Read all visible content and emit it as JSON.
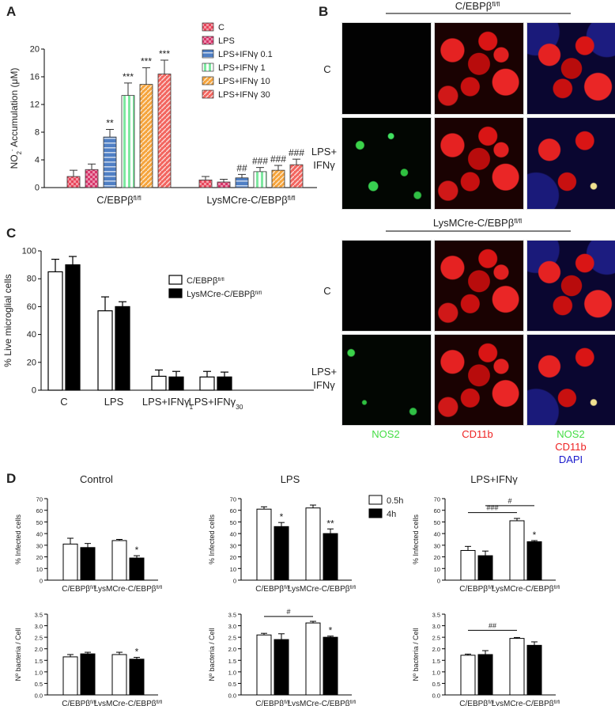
{
  "panel_letters": {
    "a": "A",
    "b": "B",
    "c": "C",
    "d": "D"
  },
  "colors": {
    "C": "#e8455a",
    "LPS": "#d8346a",
    "LPS+IFNγ 0.1": "#4f7fc4",
    "LPS+IFNγ 1": "#7ee8a0",
    "LPS+IFNγ 10": "#f5a43c",
    "LPS+IFNγ 30": "#f2655f",
    "white": "#ffffff",
    "black": "#000000",
    "nos2_label": "#44dd44",
    "cd11b_label": "#ee2222",
    "dapi_label": "#1a1acc"
  },
  "chart_data": [
    {
      "id": "A",
      "type": "bar",
      "ylabel": "NO2- Accumulation (μM)",
      "ylabel_parts": {
        "main": "NO",
        "sub": "2",
        "sup": "-",
        "rest": " Accumulation (μM)"
      },
      "ylim": [
        0,
        20
      ],
      "yticks": [
        "0",
        "4",
        "8",
        "12",
        "16",
        "20"
      ],
      "legend_placement": "top-right",
      "groups": [
        {
          "label": "C/EBPβfl/fl",
          "label_main": "C/EBPβ",
          "label_sup": "fl/fl"
        },
        {
          "label": "LysMCre-C/EBPβfl/fl",
          "label_main": "LysMCre-C/EBPβ",
          "label_sup": "fl/fl"
        }
      ],
      "series": [
        {
          "name": "C",
          "pattern": "checker",
          "values": [
            1.6,
            1.1
          ],
          "errors": [
            0.9,
            0.5
          ],
          "annotations": [
            "",
            ""
          ]
        },
        {
          "name": "LPS",
          "pattern": "checker",
          "values": [
            2.6,
            0.8
          ],
          "errors": [
            0.8,
            0.4
          ],
          "annotations": [
            "",
            ""
          ]
        },
        {
          "name": "LPS+IFNγ 0.1",
          "pattern": "hlines",
          "values": [
            7.3,
            1.4
          ],
          "errors": [
            1.1,
            0.5
          ],
          "annotations": [
            "**",
            "##"
          ]
        },
        {
          "name": "LPS+IFNγ 1",
          "pattern": "vlines",
          "values": [
            13.3,
            2.3
          ],
          "errors": [
            1.8,
            0.6
          ],
          "annotations": [
            "***",
            "###"
          ]
        },
        {
          "name": "LPS+IFNγ 10",
          "pattern": "diag",
          "values": [
            14.9,
            2.5
          ],
          "errors": [
            2.4,
            0.7
          ],
          "annotations": [
            "***",
            "###"
          ]
        },
        {
          "name": "LPS+IFNγ 30",
          "pattern": "diag",
          "values": [
            16.4,
            3.3
          ],
          "errors": [
            2.0,
            0.8
          ],
          "annotations": [
            "***",
            "###"
          ]
        }
      ]
    },
    {
      "id": "C",
      "type": "bar",
      "ylabel": "% Live microglial cells",
      "ylim": [
        0,
        100
      ],
      "yticks": [
        "0",
        "20",
        "40",
        "60",
        "80",
        "100"
      ],
      "legend_placement": "top-right",
      "categories": [
        "C",
        "LPS",
        "LPS+IFNγ1",
        "LPS+IFNγ30"
      ],
      "category_parts": [
        {
          "main": "C",
          "sub": ""
        },
        {
          "main": "LPS",
          "sub": ""
        },
        {
          "main": "LPS+IFNγ",
          "sub": "1"
        },
        {
          "main": "LPS+IFNγ",
          "sub": "30"
        }
      ],
      "series": [
        {
          "name": "C/EBPβfl/fl",
          "name_main": "C/EBPβ",
          "name_sup": "fl/fl",
          "fill": "white",
          "values": [
            85,
            57,
            10,
            9.5
          ],
          "errors": [
            9,
            10,
            4.5,
            4
          ]
        },
        {
          "name": "LysMCre-C/EBPβfl/fl",
          "name_main": "LysMCre-C/EBPβ",
          "name_sup": "fl/fl",
          "fill": "black",
          "values": [
            90,
            60,
            9.5,
            9.5
          ],
          "errors": [
            6,
            3.5,
            4,
            3.5
          ]
        }
      ]
    },
    {
      "id": "D1",
      "type": "bar",
      "title": "Control",
      "ylabel": "% Infected cells",
      "ylim": [
        0,
        70
      ],
      "yticks": [
        "0",
        "10",
        "20",
        "30",
        "40",
        "50",
        "60",
        "70"
      ],
      "categories": [
        "C/EBPβfl/fl",
        "LysMCre-C/EBPβfl/fl"
      ],
      "series": [
        {
          "name": "0.5h",
          "fill": "white",
          "values": [
            31,
            34
          ],
          "errors": [
            5,
            1
          ],
          "annotations": [
            "",
            ""
          ]
        },
        {
          "name": "4h",
          "fill": "black",
          "values": [
            28,
            19
          ],
          "errors": [
            3.5,
            2
          ],
          "annotations": [
            "",
            "*"
          ]
        }
      ],
      "brackets": []
    },
    {
      "id": "D2",
      "type": "bar",
      "title": "LPS",
      "ylabel": "% Infected cells",
      "ylim": [
        0,
        70
      ],
      "yticks": [
        "0",
        "10",
        "20",
        "30",
        "40",
        "50",
        "60",
        "70"
      ],
      "categories": [
        "C/EBPβfl/fl",
        "LysMCre-C/EBPβfl/fl"
      ],
      "series": [
        {
          "name": "0.5h",
          "fill": "white",
          "values": [
            61,
            62
          ],
          "errors": [
            2,
            2.5
          ],
          "annotations": [
            "",
            ""
          ]
        },
        {
          "name": "4h",
          "fill": "black",
          "values": [
            46,
            40
          ],
          "errors": [
            3.5,
            4
          ],
          "annotations": [
            "*",
            "**"
          ]
        }
      ],
      "brackets": []
    },
    {
      "id": "D3",
      "type": "bar",
      "title": "LPS+IFNγ",
      "ylabel": "% Infected cells",
      "ylim": [
        0,
        70
      ],
      "yticks": [
        "0",
        "10",
        "20",
        "30",
        "40",
        "50",
        "60",
        "70"
      ],
      "categories": [
        "C/EBPβfl/fl",
        "LysMCre-C/EBPβfl/fl"
      ],
      "series": [
        {
          "name": "0.5h",
          "fill": "white",
          "values": [
            25.5,
            51
          ],
          "errors": [
            3.5,
            2
          ],
          "annotations": [
            "",
            ""
          ]
        },
        {
          "name": "4h",
          "fill": "black",
          "values": [
            21,
            33
          ],
          "errors": [
            4,
            1
          ],
          "annotations": [
            "",
            "*"
          ]
        }
      ],
      "brackets": [
        {
          "label": "###",
          "from": [
            0,
            0
          ],
          "to": [
            1,
            0
          ],
          "level": 58
        },
        {
          "label": "#",
          "from": [
            0,
            1
          ],
          "to": [
            1,
            1
          ],
          "level": 64
        }
      ]
    },
    {
      "id": "D4",
      "type": "bar",
      "ylabel": "Nº bacteria / Cell",
      "ylim": [
        0,
        3.5
      ],
      "yticks": [
        "0.0",
        "0.5",
        "1.0",
        "1.5",
        "2.0",
        "2.5",
        "3.0",
        "3.5"
      ],
      "categories": [
        "C/EBPβfl/fl",
        "LysMCre-C/EBPβfl/fl"
      ],
      "series": [
        {
          "name": "0.5h",
          "fill": "white",
          "values": [
            1.65,
            1.75
          ],
          "errors": [
            0.1,
            0.1
          ],
          "annotations": [
            "",
            ""
          ]
        },
        {
          "name": "4h",
          "fill": "black",
          "values": [
            1.78,
            1.55
          ],
          "errors": [
            0.07,
            0.08
          ],
          "annotations": [
            "",
            "*"
          ]
        }
      ],
      "brackets": []
    },
    {
      "id": "D5",
      "type": "bar",
      "ylabel": "Nº bacteria / Cell",
      "ylim": [
        0,
        3.5
      ],
      "yticks": [
        "0.0",
        "0.5",
        "1.0",
        "1.5",
        "2.0",
        "2.5",
        "3.0",
        "3.5"
      ],
      "categories": [
        "C/EBPβfl/fl",
        "LysMCre-C/EBPβfl/fl"
      ],
      "series": [
        {
          "name": "0.5h",
          "fill": "white",
          "values": [
            2.6,
            3.12
          ],
          "errors": [
            0.07,
            0.07
          ],
          "annotations": [
            "",
            ""
          ]
        },
        {
          "name": "4h",
          "fill": "black",
          "values": [
            2.4,
            2.5
          ],
          "errors": [
            0.25,
            0.05
          ],
          "annotations": [
            "",
            "*"
          ]
        }
      ],
      "brackets": [
        {
          "label": "#",
          "from": [
            0,
            0
          ],
          "to": [
            1,
            0
          ],
          "level": 3.4
        }
      ]
    },
    {
      "id": "D6",
      "type": "bar",
      "ylabel": "Nº bacteria / Cell",
      "ylim": [
        0,
        3.5
      ],
      "yticks": [
        "0.0",
        "0.5",
        "1.0",
        "1.5",
        "2.0",
        "2.5",
        "3.0",
        "3.5"
      ],
      "categories": [
        "C/EBPβfl/fl",
        "LysMCre-C/EBPβfl/fl"
      ],
      "series": [
        {
          "name": "0.5h",
          "fill": "white",
          "values": [
            1.72,
            2.45
          ],
          "errors": [
            0.05,
            0.04
          ],
          "annotations": [
            "",
            ""
          ]
        },
        {
          "name": "4h",
          "fill": "black",
          "values": [
            1.75,
            2.15
          ],
          "errors": [
            0.17,
            0.15
          ],
          "annotations": [
            "",
            ""
          ]
        }
      ],
      "brackets": [
        {
          "label": "##",
          "from": [
            0,
            0
          ],
          "to": [
            1,
            0
          ],
          "level": 2.8
        }
      ]
    }
  ],
  "legend_D": {
    "items": [
      "0.5h",
      "4h"
    ]
  },
  "panel_B": {
    "header_top": "C/EBPβfl/fl",
    "header_top_main": "C/EBPβ",
    "header_top_sup": "fl/fl",
    "header_bottom": "LysMCre-C/EBPβfl/fl",
    "header_bottom_main": "LysMCre-C/EBPβ",
    "header_bottom_sup": "fl/fl",
    "row_labels": [
      "C",
      "LPS+",
      "IFNγ",
      "C",
      "LPS+",
      "IFNγ"
    ],
    "column_labels": {
      "nos2": "NOS2",
      "cd11b": "CD11b",
      "nos2_2": "NOS2",
      "cd11b_2": "CD11b",
      "dapi": "DAPI"
    }
  }
}
